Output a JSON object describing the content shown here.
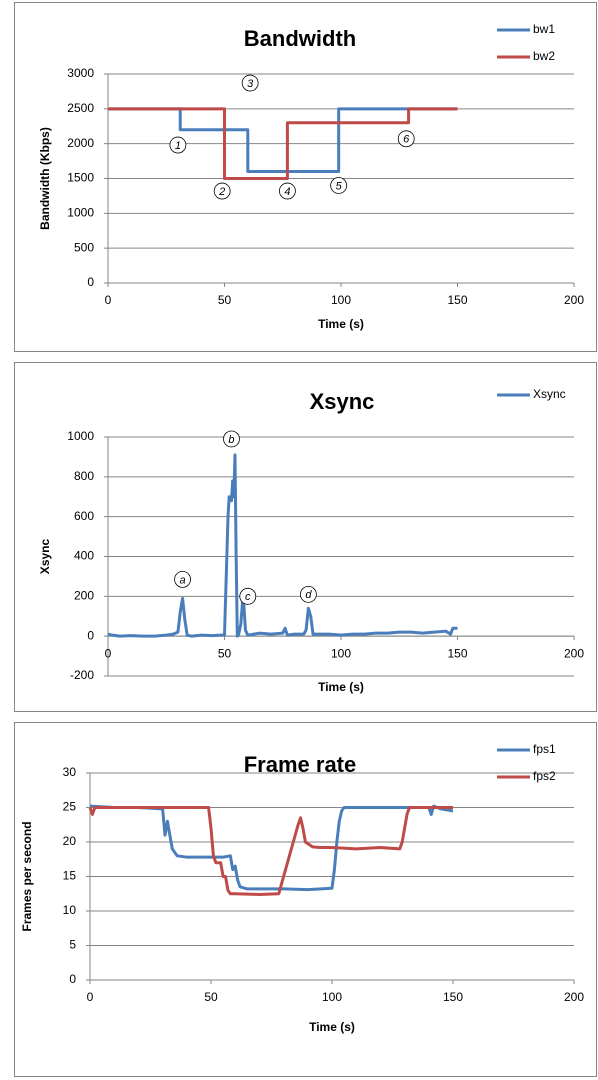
{
  "chart_data": [
    {
      "type": "line",
      "title": "Bandwidth",
      "x_label": "Time (s)",
      "y_label": "Bandwidth (Kbps)",
      "xlim": [
        0,
        200
      ],
      "xticks": [
        0,
        50,
        100,
        150,
        200
      ],
      "ylim": [
        0,
        3000
      ],
      "yticks": [
        0,
        500,
        1000,
        1500,
        2000,
        2500,
        3000
      ],
      "grid": true,
      "legend": "top-right",
      "series": [
        {
          "name": "bw1",
          "color": "#4a7ebb",
          "x": [
            0,
            31,
            31,
            60,
            60,
            99,
            99,
            150
          ],
          "values": [
            2500,
            2500,
            2200,
            2200,
            1600,
            1600,
            2500,
            2500
          ]
        },
        {
          "name": "bw2",
          "color": "#be4b48",
          "x": [
            0,
            50,
            50,
            77,
            77,
            129,
            129,
            150
          ],
          "values": [
            2500,
            2500,
            1500,
            1500,
            2300,
            2300,
            2500,
            2500
          ]
        }
      ],
      "annotations": [
        {
          "text": "1",
          "x": 30,
          "y": 1980
        },
        {
          "text": "2",
          "x": 49,
          "y": 1320
        },
        {
          "text": "3",
          "x": 61,
          "y": 2870
        },
        {
          "text": "4",
          "x": 77,
          "y": 1320
        },
        {
          "text": "5",
          "x": 99,
          "y": 1400
        },
        {
          "text": "6",
          "x": 128,
          "y": 2070
        }
      ]
    },
    {
      "type": "line",
      "title": "Xsync",
      "x_label": "Time (s)",
      "y_label": "Xsync",
      "xlim": [
        0,
        200
      ],
      "xticks": [
        0,
        50,
        100,
        150,
        200
      ],
      "ylim": [
        -200,
        1000
      ],
      "yticks": [
        -200,
        0,
        200,
        400,
        600,
        800,
        1000
      ],
      "grid": true,
      "legend": "top-right",
      "series": [
        {
          "name": "Xsync",
          "color": "#4a7ebb",
          "x": [
            0,
            2,
            5,
            10,
            15,
            20,
            25,
            28,
            30,
            31,
            32,
            33,
            34,
            36,
            40,
            45,
            48,
            50,
            51,
            51.5,
            52,
            53,
            53.5,
            54,
            54.5,
            55,
            55.5,
            56,
            57,
            58,
            59,
            60,
            65,
            70,
            75,
            76,
            77,
            80,
            84,
            85,
            86,
            87,
            88,
            90,
            95,
            100,
            105,
            110,
            115,
            120,
            125,
            130,
            135,
            140,
            145,
            147,
            148,
            150
          ],
          "values": [
            10,
            5,
            0,
            3,
            0,
            0,
            5,
            10,
            20,
            120,
            190,
            80,
            5,
            0,
            5,
            3,
            5,
            5,
            400,
            600,
            700,
            680,
            780,
            700,
            910,
            400,
            0,
            5,
            60,
            210,
            30,
            5,
            15,
            10,
            15,
            40,
            5,
            10,
            10,
            30,
            140,
            100,
            10,
            10,
            10,
            5,
            10,
            10,
            15,
            15,
            20,
            20,
            15,
            20,
            25,
            10,
            40,
            40
          ]
        }
      ],
      "annotations": [
        {
          "text": "a",
          "x": 32,
          "y": 285
        },
        {
          "text": "b",
          "x": 53,
          "y": 990
        },
        {
          "text": "c",
          "x": 60,
          "y": 200
        },
        {
          "text": "d",
          "x": 86,
          "y": 210
        }
      ]
    },
    {
      "type": "line",
      "title": "Frame rate",
      "x_label": "Time (s)",
      "y_label": "Frames per second",
      "xlim": [
        0,
        200
      ],
      "xticks": [
        0,
        50,
        100,
        150,
        200
      ],
      "ylim": [
        0,
        30
      ],
      "yticks": [
        0,
        5,
        10,
        15,
        20,
        25,
        30
      ],
      "grid": true,
      "legend": "top-right",
      "series": [
        {
          "name": "fps1",
          "color": "#4a7ebb",
          "x": [
            0,
            10,
            20,
            30,
            31,
            32,
            33,
            34,
            36,
            40,
            50,
            55,
            58,
            59,
            60,
            61,
            62,
            65,
            70,
            80,
            90,
            100,
            101,
            102,
            103,
            104,
            105,
            110,
            120,
            130,
            140,
            141,
            142,
            145,
            150
          ],
          "values": [
            25.2,
            25,
            25,
            24.8,
            21,
            23,
            21,
            19,
            18,
            17.8,
            17.8,
            17.8,
            18,
            16,
            16.5,
            14.5,
            13.5,
            13.2,
            13.2,
            13.2,
            13.1,
            13.3,
            16,
            20,
            23,
            24.5,
            25,
            25,
            25,
            25,
            25,
            24,
            25.2,
            24.8,
            24.5
          ]
        },
        {
          "name": "fps2",
          "color": "#be4b48",
          "x": [
            0,
            1,
            2,
            10,
            20,
            30,
            40,
            49,
            50,
            51,
            52,
            54,
            55,
            56,
            57,
            58,
            60,
            70,
            78,
            80,
            84,
            86,
            87,
            88,
            89,
            92,
            95,
            100,
            110,
            120,
            128,
            129,
            130,
            131,
            132,
            140,
            150
          ],
          "values": [
            25,
            24,
            25,
            25,
            25,
            25,
            25,
            25,
            22,
            18,
            17,
            17,
            15,
            15,
            13,
            12.5,
            12.5,
            12.4,
            12.5,
            15,
            20,
            22.5,
            23.5,
            22,
            20,
            19.3,
            19.2,
            19.2,
            19,
            19.2,
            19,
            20,
            22,
            24,
            25,
            25,
            25
          ]
        }
      ]
    }
  ]
}
